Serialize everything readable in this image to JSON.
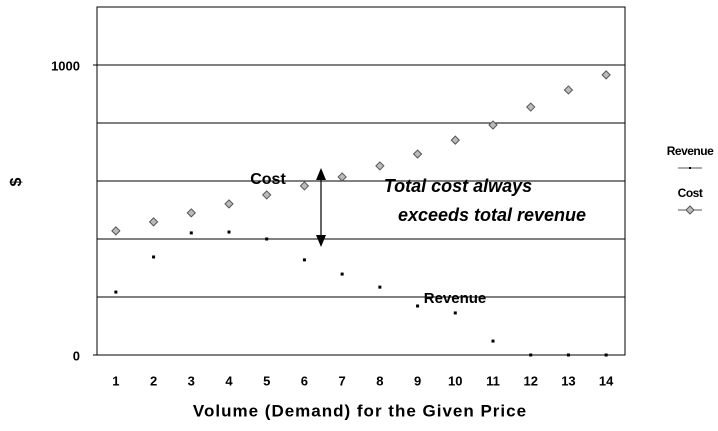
{
  "chart_data": {
    "type": "line",
    "categories": [
      "1",
      "2",
      "3",
      "4",
      "5",
      "6",
      "7",
      "8",
      "9",
      "10",
      "11",
      "12",
      "13",
      "14"
    ],
    "series": [
      {
        "name": "Revenue",
        "color": "#555555",
        "marker": "dot",
        "values": [
          217,
          338,
          421,
          424,
          400,
          328,
          279,
          234,
          169,
          145,
          48,
          0,
          0,
          0
        ]
      },
      {
        "name": "Cost",
        "color": "#555555",
        "marker": "diamond",
        "values": [
          428,
          459,
          490,
          521,
          552,
          583,
          614,
          652,
          693,
          741,
          793,
          855,
          914,
          966
        ]
      }
    ],
    "ylim": [
      0,
      1200
    ],
    "yticks": [
      0,
      1000
    ],
    "ygrid": [
      200,
      400,
      600,
      800,
      1000
    ],
    "y_label": "$",
    "x_label": "Volume (Demand) for the Given Price",
    "annotations": [
      "Cost",
      "Revenue",
      "Total cost always",
      "exceeds total revenue"
    ],
    "legend": "right"
  }
}
